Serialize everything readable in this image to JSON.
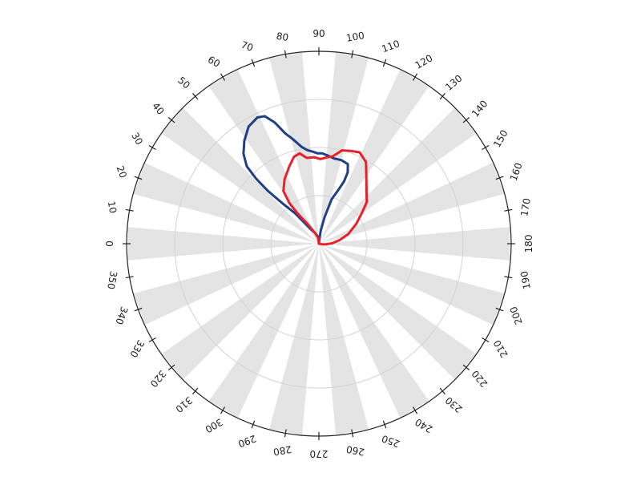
{
  "chart_data": {
    "type": "polar-line",
    "angular_axis": {
      "direction": "counterclockwise",
      "zero_position": "left",
      "ticks": [
        0,
        10,
        20,
        30,
        40,
        50,
        60,
        70,
        80,
        90,
        100,
        110,
        120,
        130,
        140,
        150,
        160,
        170,
        180,
        190,
        200,
        210,
        220,
        230,
        240,
        250,
        260,
        270,
        280,
        290,
        300,
        310,
        320,
        330,
        340,
        350
      ],
      "tick_labels": [
        "0",
        "10",
        "20",
        "30",
        "40",
        "50",
        "60",
        "70",
        "80",
        "90",
        "100",
        "110",
        "120",
        "130",
        "140",
        "150",
        "160",
        "170",
        "180",
        "190",
        "200",
        "210",
        "220",
        "230",
        "240",
        "250",
        "260",
        "270",
        "280",
        "290",
        "300",
        "310",
        "320",
        "330",
        "340",
        "350"
      ],
      "tick_label_rotation": "upside-down"
    },
    "radial_axis": {
      "range": [
        0,
        1
      ],
      "grid_circles": [
        0.25,
        0.5,
        0.75,
        1.0
      ],
      "tick_labels_shown": false
    },
    "background": "alternating-grey-white-10deg-sectors",
    "series": [
      {
        "color": "#1f3f87",
        "points": [
          [
            88,
            0.02
          ],
          [
            80,
            0.04
          ],
          [
            70,
            0.06
          ],
          [
            60,
            0.09
          ],
          [
            52,
            0.2
          ],
          [
            48,
            0.28
          ],
          [
            46,
            0.38
          ],
          [
            46,
            0.47
          ],
          [
            47,
            0.55
          ],
          [
            50,
            0.61
          ],
          [
            54,
            0.66
          ],
          [
            59,
            0.71
          ],
          [
            64,
            0.73
          ],
          [
            67,
            0.72
          ],
          [
            70,
            0.67
          ],
          [
            73,
            0.6
          ],
          [
            76,
            0.56
          ],
          [
            80,
            0.51
          ],
          [
            83,
            0.49
          ],
          [
            86,
            0.48
          ],
          [
            89,
            0.47
          ],
          [
            92,
            0.47
          ],
          [
            96,
            0.46
          ],
          [
            100,
            0.45
          ],
          [
            105,
            0.45
          ],
          [
            110,
            0.44
          ],
          [
            112,
            0.4
          ],
          [
            112,
            0.35
          ],
          [
            110,
            0.3
          ],
          [
            106,
            0.24
          ],
          [
            102,
            0.14
          ],
          [
            98,
            0.07
          ],
          [
            95,
            0.02
          ]
        ]
      },
      {
        "color": "#e8202a",
        "points": [
          [
            82,
            0.03
          ],
          [
            70,
            0.06
          ],
          [
            60,
            0.12
          ],
          [
            55,
            0.19
          ],
          [
            54,
            0.26
          ],
          [
            56,
            0.33
          ],
          [
            62,
            0.38
          ],
          [
            69,
            0.43
          ],
          [
            74,
            0.47
          ],
          [
            78,
            0.48
          ],
          [
            82,
            0.45
          ],
          [
            87,
            0.45
          ],
          [
            91,
            0.44
          ],
          [
            95,
            0.45
          ],
          [
            99,
            0.46
          ],
          [
            104,
            0.5
          ],
          [
            109,
            0.51
          ],
          [
            114,
            0.52
          ],
          [
            120,
            0.49
          ],
          [
            125,
            0.43
          ],
          [
            132,
            0.37
          ],
          [
            139,
            0.33
          ],
          [
            145,
            0.27
          ],
          [
            152,
            0.22
          ],
          [
            162,
            0.16
          ],
          [
            170,
            0.11
          ],
          [
            178,
            0.07
          ],
          [
            184,
            0.04
          ],
          [
            190,
            0.02
          ]
        ]
      }
    ]
  }
}
